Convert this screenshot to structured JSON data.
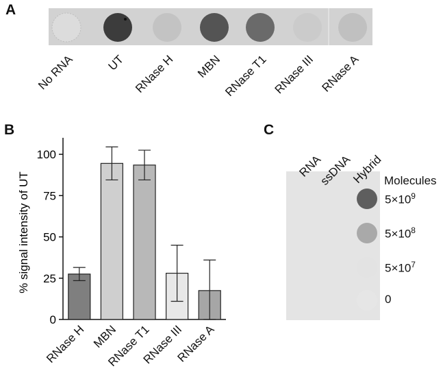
{
  "panel_labels": {
    "a": "A",
    "b": "B",
    "c": "C"
  },
  "panel_a": {
    "lanes": [
      "No RNA",
      "UT",
      "RNase H",
      "MBN",
      "RNase T1",
      "RNase III",
      "RNase A"
    ],
    "spot_colors": [
      "#dcdcdc",
      "#3c3c3c",
      "#c3c3c3",
      "#545454",
      "#6a6a6a",
      "#cbcbcb",
      "#c0c0c0"
    ]
  },
  "chart_data": {
    "type": "bar",
    "categories": [
      "RNase H",
      "MBN",
      "RNase T1",
      "RNase III",
      "RNase A"
    ],
    "values": [
      27.5,
      94.5,
      93.5,
      28,
      17.5
    ],
    "error_low": [
      23.5,
      84.5,
      84.5,
      11,
      0
    ],
    "error_high": [
      31.5,
      104.5,
      102.5,
      45,
      36
    ],
    "bar_colors": [
      "#7f7f7f",
      "#cfcfcf",
      "#b8b8b8",
      "#e8e8e8",
      "#a6a6a6"
    ],
    "ylabel": "% signal intensity of UT",
    "ylim": [
      0,
      110
    ],
    "yticks": [
      "0",
      "25",
      "50",
      "75",
      "100"
    ],
    "ytick_values": [
      0,
      25,
      50,
      75,
      100
    ]
  },
  "panel_c": {
    "columns": [
      "RNA",
      "ssDNA",
      "Hybrid"
    ],
    "molecules_header": "Molecules",
    "rows": [
      {
        "base": "5×10",
        "exp": "9"
      },
      {
        "base": "5×10",
        "exp": "8"
      },
      {
        "base": "5×10",
        "exp": "7"
      },
      {
        "base": "0",
        "exp": ""
      }
    ],
    "hybrid_spot_colors": [
      "#5e5e5e",
      "#a9a9a9",
      "#e3e3e3",
      "#e6e6e6"
    ]
  }
}
